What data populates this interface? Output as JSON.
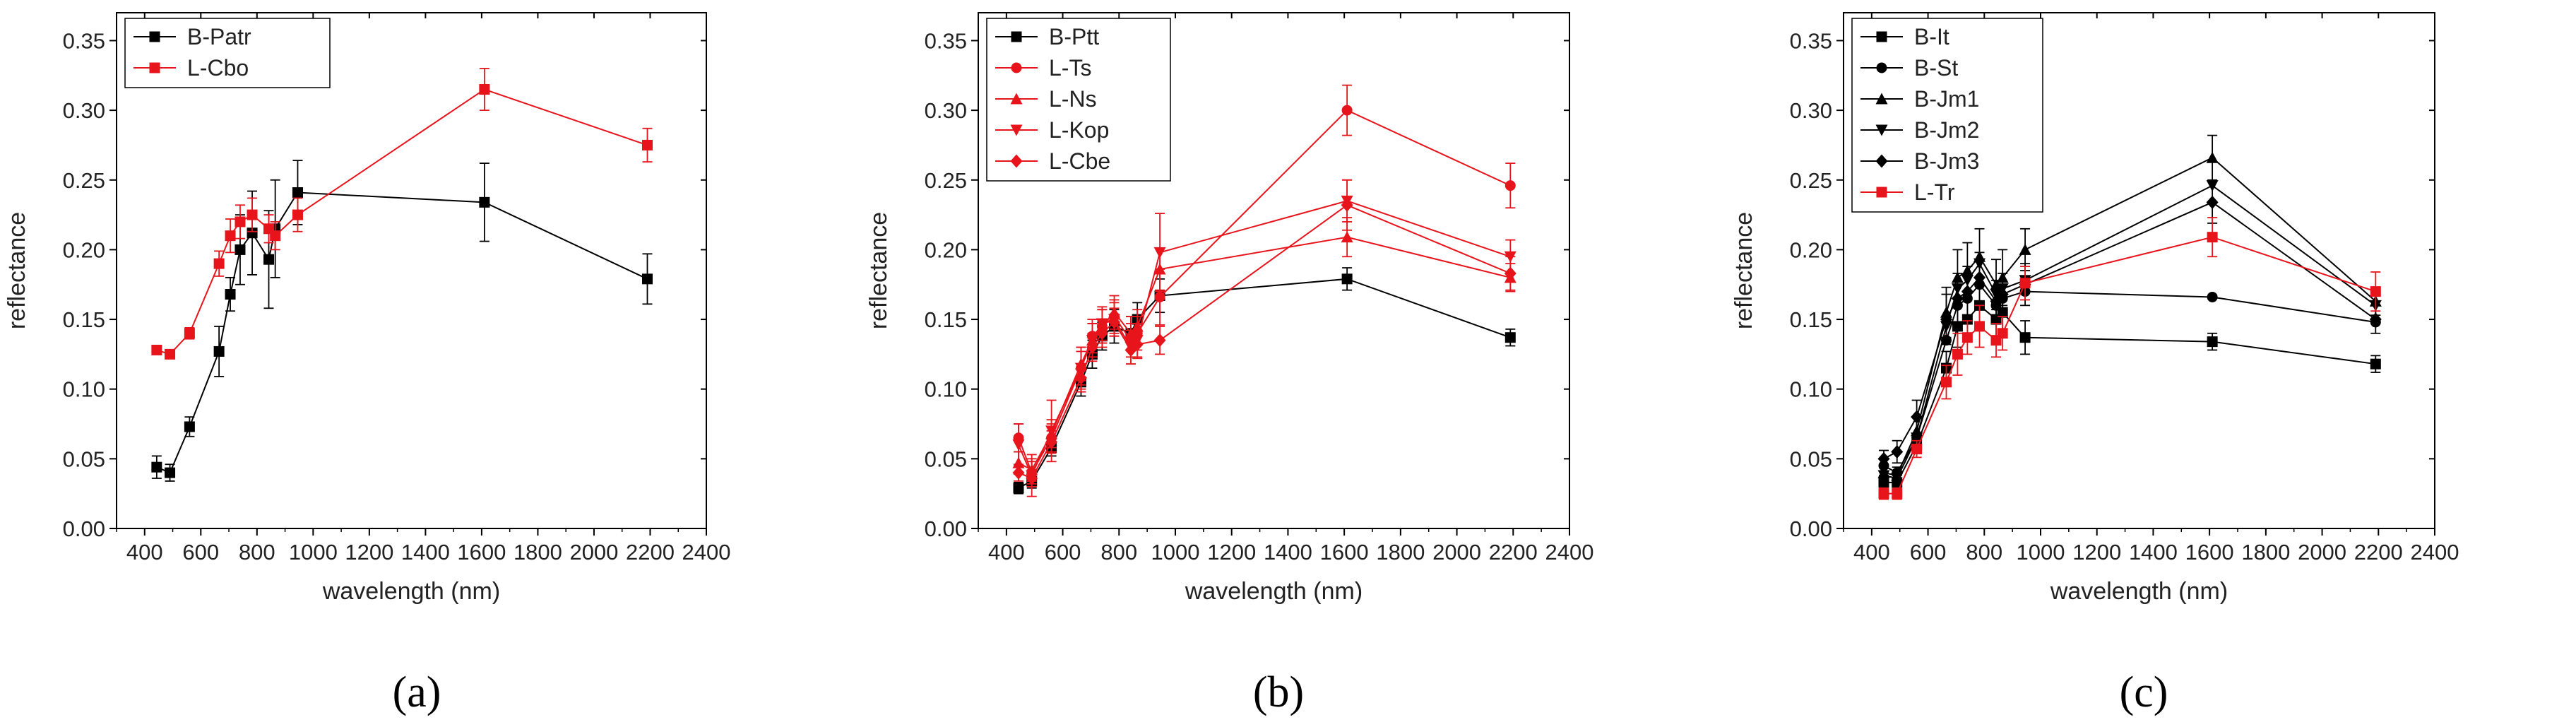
{
  "figure": {
    "panel_labels": [
      "(a)",
      "(b)",
      "(c)"
    ]
  },
  "chart_data": [
    {
      "type": "line",
      "panel": "(a)",
      "xlabel": "wavelength (nm)",
      "ylabel": "reflectance",
      "xlim": [
        300,
        2400
      ],
      "ylim": [
        0,
        0.37
      ],
      "xticks": [
        400,
        600,
        800,
        1000,
        1200,
        1400,
        1600,
        1800,
        2000,
        2200,
        2400
      ],
      "yticks": [
        0.0,
        0.05,
        0.1,
        0.15,
        0.2,
        0.25,
        0.3,
        0.35
      ],
      "legend_position": "top-left",
      "x": [
        443,
        490,
        560,
        665,
        705,
        740,
        783,
        842,
        865,
        945,
        1610,
        2190
      ],
      "series": [
        {
          "name": "B-Patr",
          "color": "#000000",
          "marker": "square",
          "values": [
            0.044,
            0.04,
            0.073,
            0.127,
            0.168,
            0.2,
            0.212,
            0.193,
            0.215,
            0.241,
            0.234,
            0.179
          ],
          "errors": [
            0.008,
            0.006,
            0.007,
            0.018,
            0.012,
            0.025,
            0.03,
            0.035,
            0.035,
            0.023,
            0.028,
            0.018
          ]
        },
        {
          "name": "L-Cbo",
          "color": "#e8141c",
          "marker": "square",
          "values": [
            0.128,
            0.125,
            0.14,
            0.19,
            0.21,
            0.22,
            0.225,
            0.215,
            0.21,
            0.225,
            0.315,
            0.275
          ],
          "errors": [
            0.003,
            0.003,
            0.004,
            0.009,
            0.012,
            0.012,
            0.012,
            0.01,
            0.01,
            0.012,
            0.015,
            0.012
          ]
        }
      ]
    },
    {
      "type": "line",
      "panel": "(b)",
      "xlabel": "wavelength (nm)",
      "ylabel": "reflectance",
      "xlim": [
        300,
        2400
      ],
      "ylim": [
        0,
        0.37
      ],
      "xticks": [
        400,
        600,
        800,
        1000,
        1200,
        1400,
        1600,
        1800,
        2000,
        2200,
        2400
      ],
      "yticks": [
        0.0,
        0.05,
        0.1,
        0.15,
        0.2,
        0.25,
        0.3,
        0.35
      ],
      "legend_position": "top-left",
      "x": [
        443,
        490,
        560,
        665,
        705,
        740,
        783,
        842,
        865,
        945,
        1610,
        2190
      ],
      "series": [
        {
          "name": "B-Ptt",
          "color": "#000000",
          "marker": "square",
          "values": [
            0.029,
            0.034,
            0.058,
            0.105,
            0.125,
            0.138,
            0.145,
            0.14,
            0.15,
            0.167,
            0.179,
            0.137
          ],
          "errors": [
            0.004,
            0.005,
            0.006,
            0.01,
            0.01,
            0.01,
            0.012,
            0.012,
            0.012,
            0.012,
            0.008,
            0.006
          ]
        },
        {
          "name": "L-Ts",
          "color": "#e8141c",
          "marker": "circle",
          "values": [
            0.065,
            0.04,
            0.065,
            0.115,
            0.138,
            0.145,
            0.152,
            0.135,
            0.14,
            0.166,
            0.3,
            0.246
          ],
          "errors": [
            0.01,
            0.008,
            0.01,
            0.012,
            0.012,
            0.012,
            0.012,
            0.012,
            0.012,
            0.02,
            0.018,
            0.016
          ]
        },
        {
          "name": "L-Ns",
          "color": "#e8141c",
          "marker": "triangle-up",
          "values": [
            0.047,
            0.042,
            0.068,
            0.118,
            0.135,
            0.145,
            0.155,
            0.14,
            0.145,
            0.186,
            0.209,
            0.18
          ],
          "errors": [
            0.008,
            0.008,
            0.01,
            0.012,
            0.012,
            0.012,
            0.012,
            0.012,
            0.012,
            0.015,
            0.014,
            0.01
          ]
        },
        {
          "name": "L-Kop",
          "color": "#e8141c",
          "marker": "triangle-down",
          "values": [
            0.06,
            0.038,
            0.07,
            0.115,
            0.135,
            0.147,
            0.15,
            0.13,
            0.135,
            0.198,
            0.235,
            0.195
          ],
          "errors": [
            0.015,
            0.015,
            0.022,
            0.015,
            0.012,
            0.012,
            0.012,
            0.012,
            0.012,
            0.028,
            0.015,
            0.012
          ]
        },
        {
          "name": "L-Cbe",
          "color": "#e8141c",
          "marker": "diamond",
          "values": [
            0.04,
            0.036,
            0.062,
            0.108,
            0.13,
            0.14,
            0.148,
            0.128,
            0.132,
            0.135,
            0.232,
            0.183
          ],
          "errors": [
            0.006,
            0.006,
            0.008,
            0.01,
            0.01,
            0.01,
            0.01,
            0.01,
            0.01,
            0.01,
            0.018,
            0.012
          ]
        }
      ]
    },
    {
      "type": "line",
      "panel": "(c)",
      "xlabel": "wavelength (nm)",
      "ylabel": "reflectance",
      "xlim": [
        300,
        2400
      ],
      "ylim": [
        0,
        0.37
      ],
      "xticks": [
        400,
        600,
        800,
        1000,
        1200,
        1400,
        1600,
        1800,
        2000,
        2200,
        2400
      ],
      "yticks": [
        0.0,
        0.05,
        0.1,
        0.15,
        0.2,
        0.25,
        0.3,
        0.35
      ],
      "legend_position": "top-left",
      "x": [
        443,
        490,
        560,
        665,
        705,
        740,
        783,
        842,
        865,
        945,
        1610,
        2190
      ],
      "series": [
        {
          "name": "B-It",
          "color": "#000000",
          "marker": "square",
          "values": [
            0.033,
            0.033,
            0.06,
            0.115,
            0.145,
            0.15,
            0.16,
            0.15,
            0.155,
            0.137,
            0.134,
            0.118
          ],
          "errors": [
            0.005,
            0.005,
            0.006,
            0.012,
            0.015,
            0.015,
            0.015,
            0.012,
            0.012,
            0.012,
            0.006,
            0.006
          ]
        },
        {
          "name": "B-St",
          "color": "#000000",
          "marker": "circle",
          "values": [
            0.045,
            0.04,
            0.065,
            0.135,
            0.16,
            0.165,
            0.175,
            0.16,
            0.165,
            0.17,
            0.166,
            0.148
          ]
        },
        {
          "name": "B-Jm1",
          "color": "#000000",
          "marker": "triangle-up",
          "values": [
            0.04,
            0.038,
            0.07,
            0.155,
            0.18,
            0.185,
            0.195,
            0.175,
            0.18,
            0.2,
            0.266,
            0.163
          ],
          "errors": [
            0.006,
            0.006,
            0.01,
            0.018,
            0.02,
            0.02,
            0.02,
            0.018,
            0.02,
            0.015,
            0.016,
            0.01
          ]
        },
        {
          "name": "B-Jm2",
          "color": "#000000",
          "marker": "triangle-down",
          "values": [
            0.038,
            0.036,
            0.065,
            0.145,
            0.172,
            0.178,
            0.19,
            0.168,
            0.172,
            0.178,
            0.246,
            0.16
          ]
        },
        {
          "name": "B-Jm3",
          "color": "#000000",
          "marker": "diamond",
          "values": [
            0.05,
            0.055,
            0.08,
            0.15,
            0.165,
            0.17,
            0.18,
            0.163,
            0.168,
            0.175,
            0.234,
            0.15
          ],
          "errors": [
            0.006,
            0.008,
            0.012,
            0.018,
            0.018,
            0.018,
            0.018,
            0.015,
            0.015,
            0.015,
            0.015,
            0.01
          ]
        },
        {
          "name": "L-Tr",
          "color": "#e8141c",
          "marker": "square",
          "values": [
            0.025,
            0.025,
            0.057,
            0.105,
            0.125,
            0.137,
            0.145,
            0.135,
            0.14,
            0.176,
            0.209,
            0.17
          ],
          "errors": [
            0.004,
            0.004,
            0.006,
            0.012,
            0.015,
            0.012,
            0.015,
            0.012,
            0.012,
            0.012,
            0.014,
            0.014
          ]
        }
      ]
    }
  ]
}
